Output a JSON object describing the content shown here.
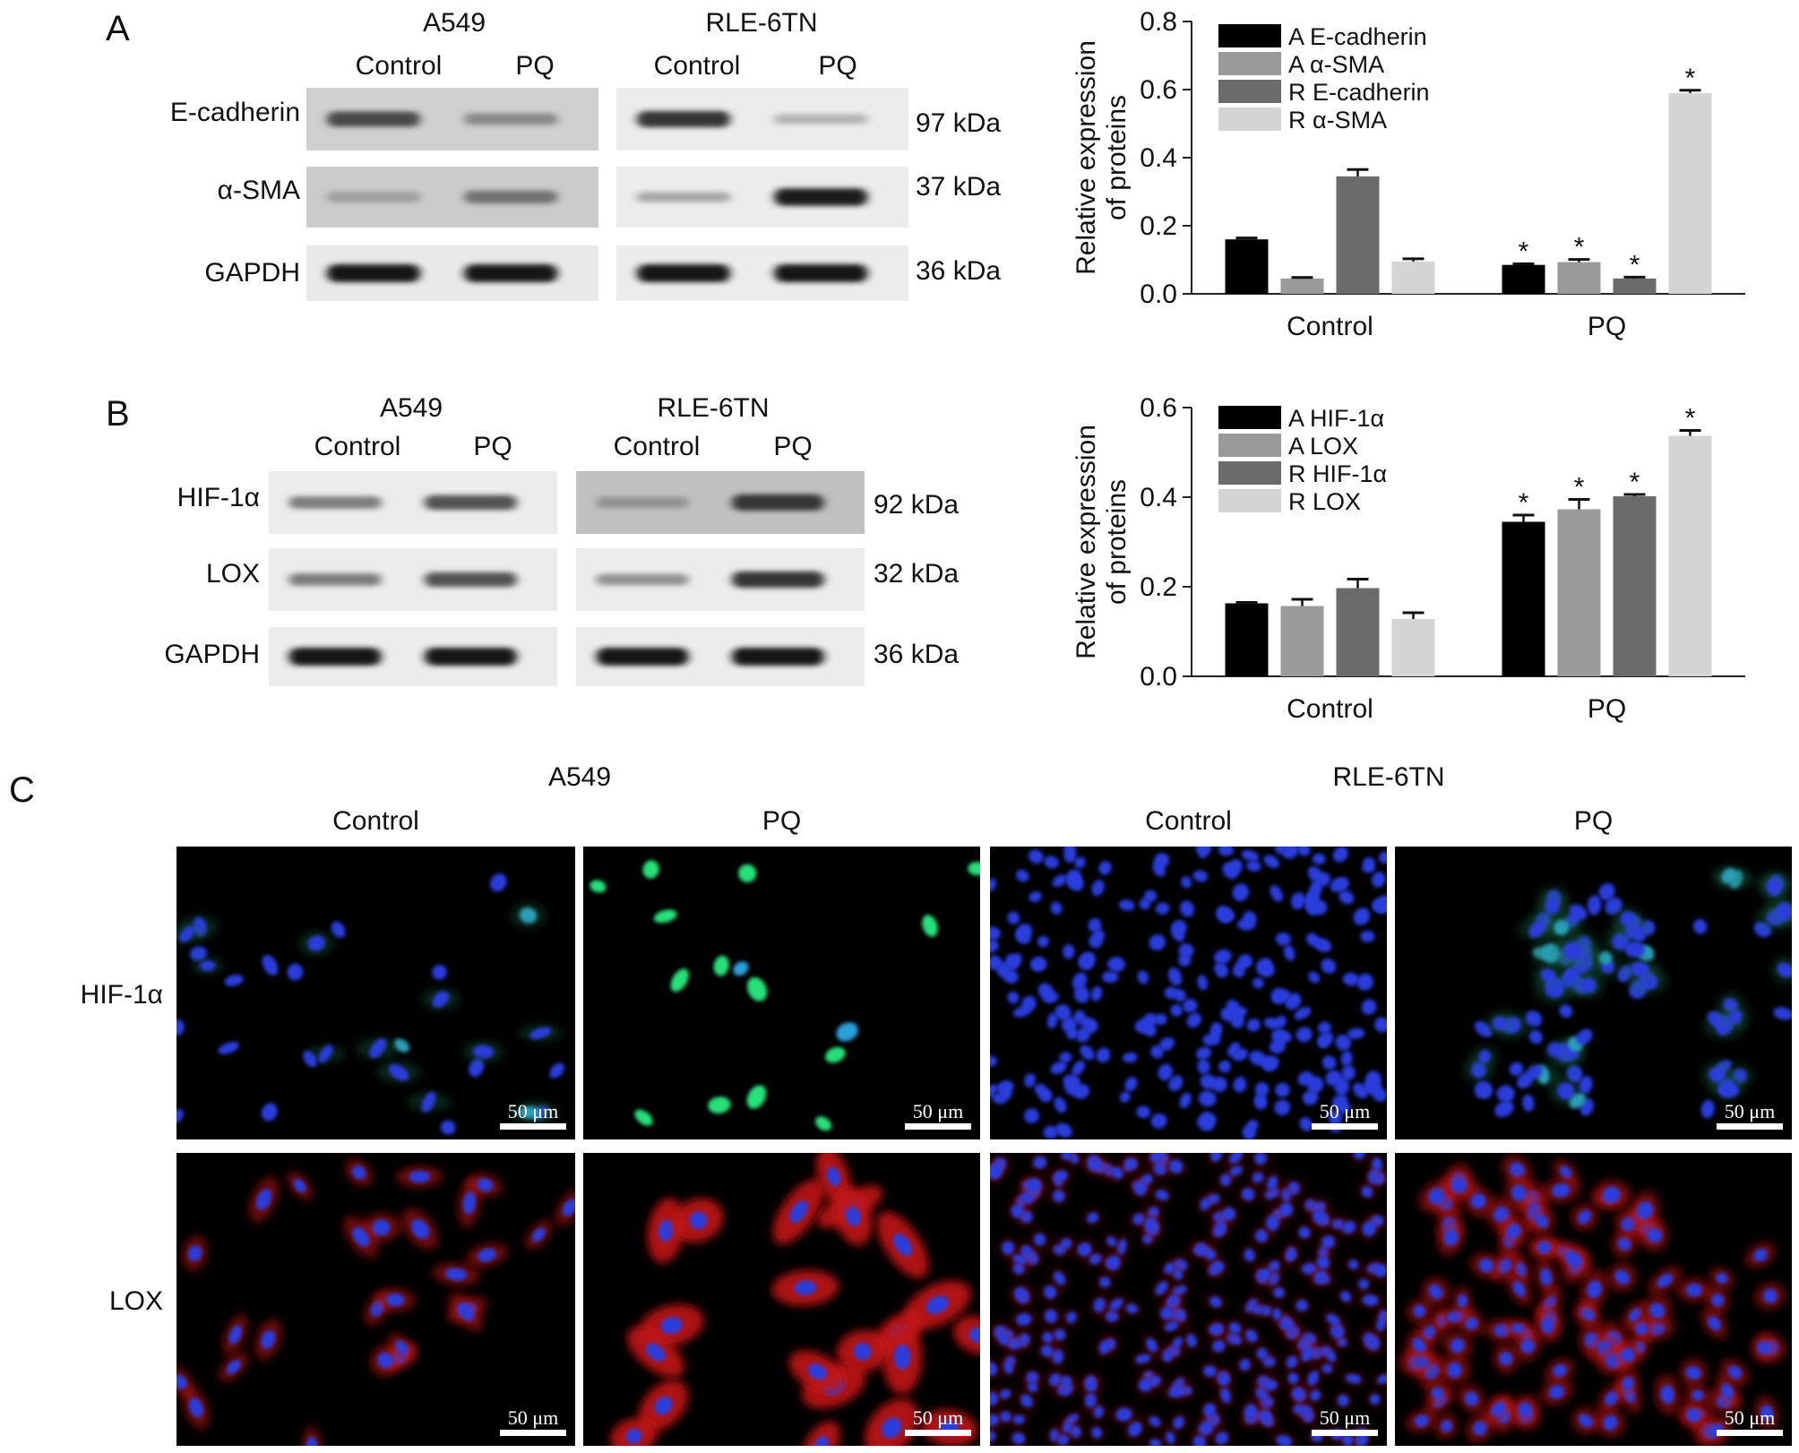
{
  "panels": {
    "A": {
      "letter": "A",
      "blot": {
        "cell_lines": [
          "A549",
          "RLE-6TN"
        ],
        "conditions": [
          "Control",
          "PQ"
        ],
        "proteins": [
          "E-cadherin",
          "α-SMA",
          "GAPDH"
        ],
        "kdas": [
          "97 kDa",
          "37 kDa",
          "36 kDa"
        ],
        "band_levels": [
          [
            0.75,
            0.45,
            0.85,
            0.25
          ],
          [
            0.35,
            0.55,
            0.3,
            0.95
          ],
          [
            1.0,
            1.0,
            1.0,
            1.0
          ]
        ],
        "background_levels": [
          [
            0.25,
            0.06
          ],
          [
            0.28,
            0.06
          ],
          [
            0.08,
            0.06
          ]
        ]
      }
    },
    "B": {
      "letter": "B",
      "blot": {
        "cell_lines": [
          "A549",
          "RLE-6TN"
        ],
        "conditions": [
          "Control",
          "PQ"
        ],
        "proteins": [
          "HIF-1α",
          "LOX",
          "GAPDH"
        ],
        "kdas": [
          "92 kDa",
          "32 kDa",
          "36 kDa"
        ],
        "band_levels": [
          [
            0.5,
            0.7,
            0.4,
            0.85
          ],
          [
            0.5,
            0.7,
            0.4,
            0.85
          ],
          [
            1.0,
            1.0,
            1.0,
            1.0
          ]
        ],
        "background_levels": [
          [
            0.06,
            0.35
          ],
          [
            0.06,
            0.06
          ],
          [
            0.06,
            0.06
          ]
        ]
      }
    },
    "C": {
      "letter": "C",
      "cell_lines": [
        "A549",
        "RLE-6TN"
      ],
      "conditions": [
        "Control",
        "PQ"
      ],
      "rows": [
        "HIF-1α",
        "LOX"
      ],
      "scale_bar": "50 μm"
    }
  },
  "chart_data": [
    {
      "type": "bar",
      "panel": "A",
      "categories": [
        "Control",
        "PQ"
      ],
      "ylabel": [
        "Relative expression",
        "of proteins"
      ],
      "ylim": [
        0,
        0.8
      ],
      "yticks": [
        "0.0",
        "0.2",
        "0.4",
        "0.6",
        "0.8"
      ],
      "legend_position": "top-left",
      "significance_marker": "*",
      "series": [
        {
          "name": "A E-cadherin",
          "color": "#000000",
          "values": [
            0.16,
            0.085
          ],
          "errors": [
            0.004,
            0.003
          ],
          "significant": [
            false,
            true
          ]
        },
        {
          "name": "A α-SMA",
          "color": "#9a9a9a",
          "values": [
            0.045,
            0.093
          ],
          "errors": [
            0.003,
            0.008
          ],
          "significant": [
            false,
            true
          ]
        },
        {
          "name": "R E-cadherin",
          "color": "#6b6b6b",
          "values": [
            0.345,
            0.045
          ],
          "errors": [
            0.02,
            0.004
          ],
          "significant": [
            false,
            true
          ]
        },
        {
          "name": "R α-SMA",
          "color": "#d4d4d4",
          "values": [
            0.095,
            0.59
          ],
          "errors": [
            0.008,
            0.008
          ],
          "significant": [
            false,
            true
          ]
        }
      ]
    },
    {
      "type": "bar",
      "panel": "B",
      "categories": [
        "Control",
        "PQ"
      ],
      "ylabel": [
        "Relative expression",
        "of proteins"
      ],
      "ylim": [
        0,
        0.6
      ],
      "yticks": [
        "0.0",
        "0.2",
        "0.4",
        "0.6"
      ],
      "legend_position": "top-left",
      "significance_marker": "*",
      "series": [
        {
          "name": "A HIF-1α",
          "color": "#000000",
          "values": [
            0.163,
            0.345
          ],
          "errors": [
            0.002,
            0.015
          ],
          "significant": [
            false,
            true
          ]
        },
        {
          "name": "A LOX",
          "color": "#9a9a9a",
          "values": [
            0.157,
            0.373
          ],
          "errors": [
            0.015,
            0.022
          ],
          "significant": [
            false,
            true
          ]
        },
        {
          "name": "R HIF-1α",
          "color": "#6b6b6b",
          "values": [
            0.197,
            0.402
          ],
          "errors": [
            0.02,
            0.004
          ],
          "significant": [
            false,
            true
          ]
        },
        {
          "name": "R LOX",
          "color": "#d4d4d4",
          "values": [
            0.128,
            0.537
          ],
          "errors": [
            0.014,
            0.012
          ],
          "significant": [
            false,
            true
          ]
        }
      ]
    }
  ]
}
